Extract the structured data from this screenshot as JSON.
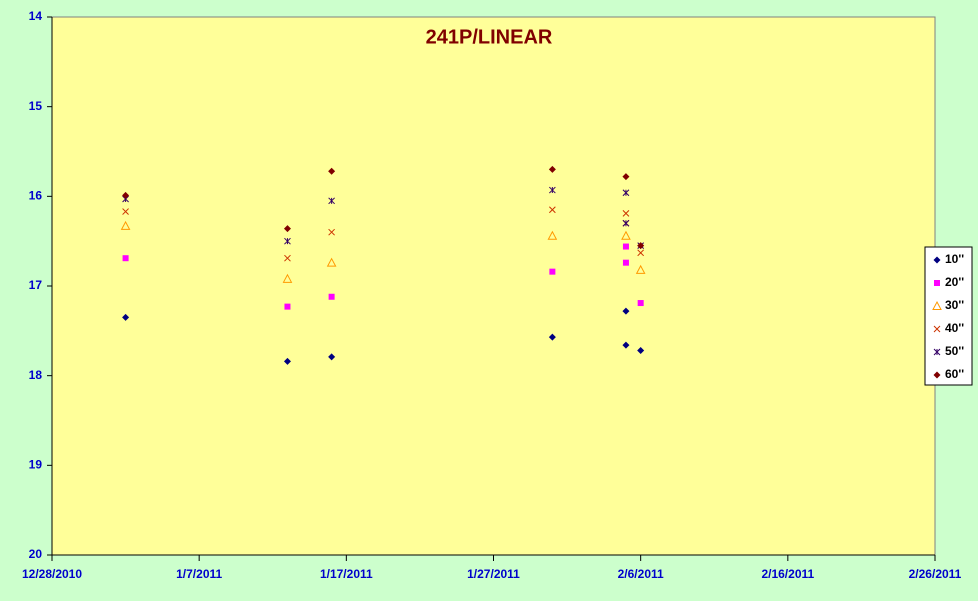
{
  "chart_data": {
    "type": "scatter",
    "title": "241P/LINEAR",
    "x": [
      "2011-01-02",
      "2011-01-13",
      "2011-01-16",
      "2011-01-31",
      "2011-02-05",
      "2011-02-05",
      "2011-02-06"
    ],
    "series": [
      {
        "name": "10''",
        "color": "#000080",
        "marker": "diamond",
        "values": [
          17.35,
          17.84,
          17.79,
          17.57,
          17.28,
          17.66,
          17.72
        ]
      },
      {
        "name": "20''",
        "color": "#ff00ff",
        "marker": "square",
        "values": [
          16.69,
          17.23,
          17.12,
          16.84,
          16.56,
          16.74,
          17.19
        ]
      },
      {
        "name": "30''",
        "color": "#ff9900",
        "marker": "triangle",
        "values": [
          16.33,
          16.92,
          16.74,
          16.44,
          16.44,
          null,
          16.82
        ]
      },
      {
        "name": "40''",
        "color": "#cc3300",
        "marker": "x",
        "values": [
          16.17,
          16.69,
          16.4,
          16.15,
          16.19,
          16.3,
          16.63
        ]
      },
      {
        "name": "50''",
        "color": "#330066",
        "marker": "star",
        "values": [
          16.03,
          16.5,
          16.05,
          15.93,
          15.96,
          16.3,
          16.55
        ]
      },
      {
        "name": "60''",
        "color": "#800000",
        "marker": "diamond",
        "values": [
          15.99,
          16.36,
          15.72,
          15.7,
          15.78,
          null,
          16.55
        ]
      }
    ],
    "xlim": [
      "2010-12-28",
      "2011-02-26"
    ],
    "xticks": [
      {
        "value": "2010-12-28",
        "label": "12/28/2010"
      },
      {
        "value": "2011-01-07",
        "label": "1/7/2011"
      },
      {
        "value": "2011-01-17",
        "label": "1/17/2011"
      },
      {
        "value": "2011-01-27",
        "label": "1/27/2011"
      },
      {
        "value": "2011-02-06",
        "label": "2/6/2011"
      },
      {
        "value": "2011-02-16",
        "label": "2/16/2011"
      },
      {
        "value": "2011-02-26",
        "label": "2/26/2011"
      }
    ],
    "ylim": [
      14,
      20
    ],
    "yticks": [
      14,
      15,
      16,
      17,
      18,
      19,
      20
    ],
    "y_inverted": true,
    "grid": false,
    "legend": "right"
  }
}
